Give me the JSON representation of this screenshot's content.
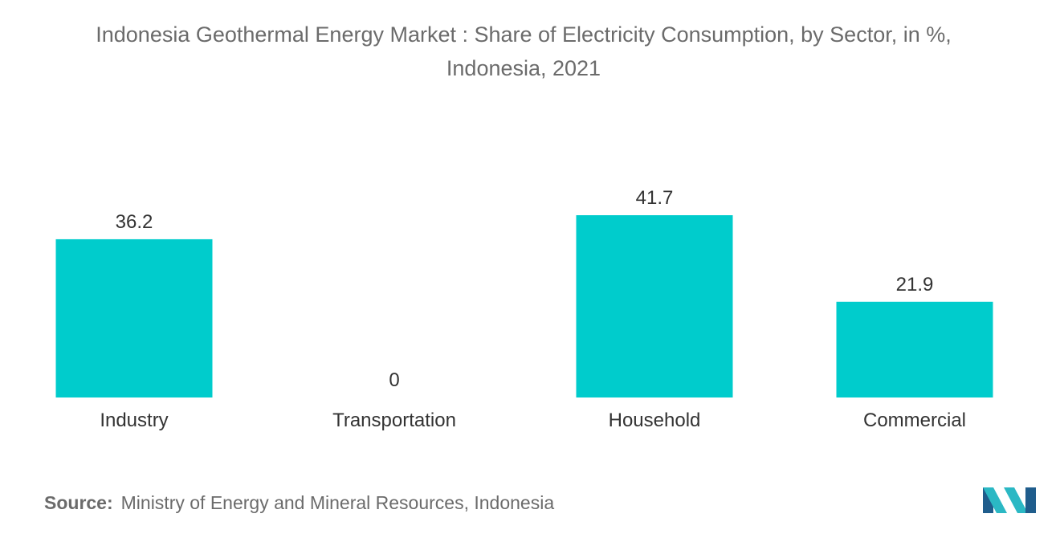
{
  "chart_data": {
    "type": "bar",
    "title_line1": "Indonesia Geothermal Energy Market : Share of Electricity Consumption, by Sector, in %,",
    "title_line2": "Indonesia, 2021",
    "categories": [
      "Industry",
      "Transportation",
      "Household",
      "Commercial"
    ],
    "values": [
      36.2,
      0,
      41.7,
      21.9
    ],
    "value_labels": [
      "36.2",
      "0",
      "41.7",
      "21.9"
    ],
    "bar_color": "#00cccc",
    "ylim": [
      0,
      41.7
    ],
    "grid": false,
    "legend": "none"
  },
  "source": {
    "label": "Source:",
    "text": "Ministry of Energy and Mineral Resources, Indonesia"
  },
  "colors": {
    "title_text": "#6b6b6b",
    "label_text": "#333333",
    "logo_dark": "#1f5d8c",
    "logo_light": "#2bb8c4"
  },
  "logo": {
    "icon": "mordor-intelligence-logo"
  }
}
